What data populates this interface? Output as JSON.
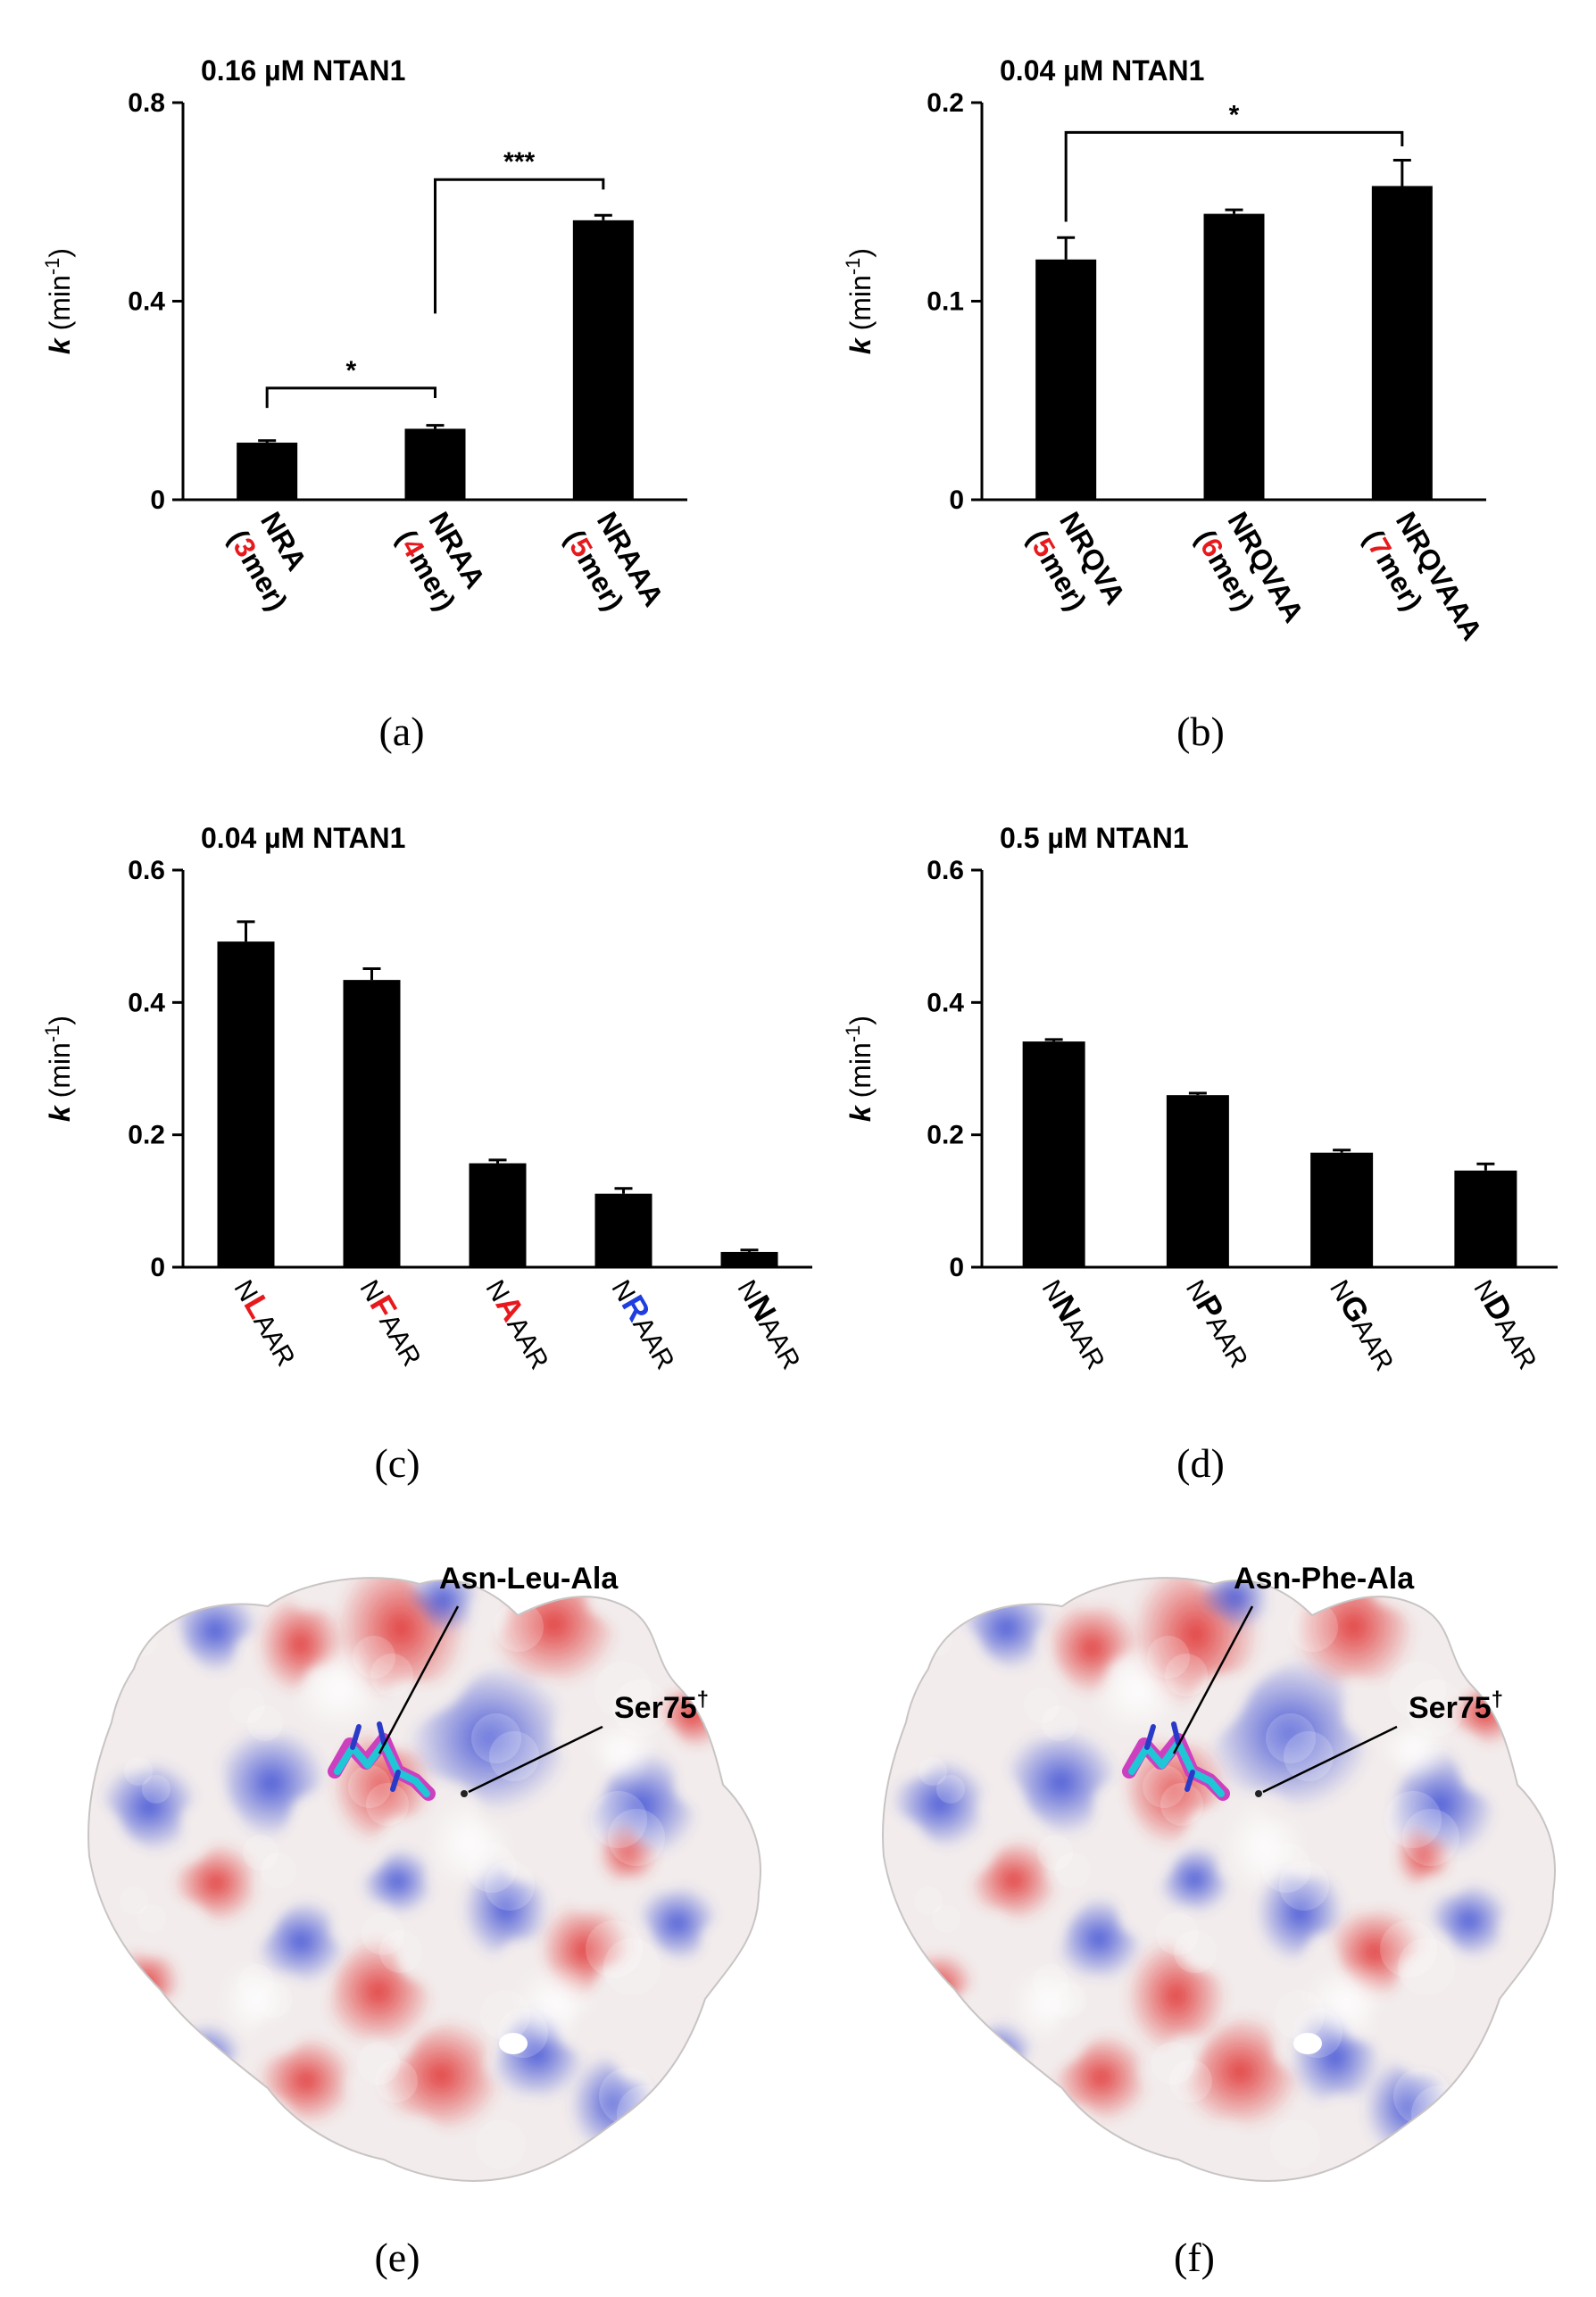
{
  "chart_data": [
    {
      "id": "a",
      "type": "bar",
      "panel_label": "(a)",
      "title": "0.16 µM NTAN1",
      "ylabel": "k (min-1)",
      "ylim": [
        0,
        0.8
      ],
      "yticks": [
        "0",
        "0.4",
        "0.8"
      ],
      "categories": [
        {
          "parts": [
            {
              "t": "NRA",
              "c": "#000000"
            },
            {
              "t": "(",
              "c": "#000000"
            },
            {
              "t": "3",
              "c": "#e8191c"
            },
            {
              "t": "mer)",
              "c": "#000000"
            }
          ],
          "line1": "NRA",
          "line2": [
            "(",
            "3",
            "mer)"
          ]
        },
        {
          "line1": "NRAA",
          "line2": [
            "(",
            "4",
            "mer)"
          ]
        },
        {
          "line1": "NRAAA",
          "line2": [
            "(",
            "5",
            "mer)"
          ]
        }
      ],
      "values": [
        0.115,
        0.143,
        0.563
      ],
      "errors": [
        0.004,
        0.007,
        0.01
      ],
      "significance": [
        {
          "from": 0,
          "to": 1,
          "label": "*"
        },
        {
          "from": 1,
          "to": 2,
          "label": "***"
        }
      ]
    },
    {
      "id": "b",
      "type": "bar",
      "panel_label": "(b)",
      "title": "0.04 µM NTAN1",
      "ylabel": "k (min-1)",
      "ylim": [
        0,
        0.2
      ],
      "yticks": [
        "0",
        "0.1",
        "0.2"
      ],
      "categories": [
        {
          "line1": "NRQVA",
          "line2": [
            "(",
            "5",
            "mer)"
          ]
        },
        {
          "line1": "NRQVAA",
          "line2": [
            "(",
            "6",
            "mer)"
          ]
        },
        {
          "line1": "NRQVAAA",
          "line2": [
            "(",
            "7",
            "mer)"
          ]
        }
      ],
      "values": [
        0.121,
        0.144,
        0.158
      ],
      "errors": [
        0.011,
        0.002,
        0.013
      ],
      "significance": [
        {
          "from": 0,
          "to": 2,
          "label": "*"
        }
      ]
    },
    {
      "id": "c",
      "type": "bar",
      "panel_label": "(c)",
      "title": "0.04 µM NTAN1",
      "ylabel": "k (min-1)",
      "ylim": [
        0,
        0.6
      ],
      "yticks": [
        "0",
        "0.2",
        "0.4",
        "0.6"
      ],
      "categories": [
        {
          "parts": [
            {
              "t": "N",
              "c": "#000000",
              "b": false
            },
            {
              "t": "L",
              "c": "#e8191c",
              "b": true
            },
            {
              "t": "AAR",
              "c": "#000000",
              "b": false
            }
          ]
        },
        {
          "parts": [
            {
              "t": "N",
              "c": "#000000",
              "b": false
            },
            {
              "t": "F",
              "c": "#e8191c",
              "b": true
            },
            {
              "t": "AAR",
              "c": "#000000",
              "b": false
            }
          ]
        },
        {
          "parts": [
            {
              "t": "N",
              "c": "#000000",
              "b": false
            },
            {
              "t": "A",
              "c": "#e8191c",
              "b": true
            },
            {
              "t": "AAR",
              "c": "#000000",
              "b": false
            }
          ]
        },
        {
          "parts": [
            {
              "t": "N",
              "c": "#000000",
              "b": false
            },
            {
              "t": "R",
              "c": "#1f3ee0",
              "b": true
            },
            {
              "t": "AAR",
              "c": "#000000",
              "b": false
            }
          ]
        },
        {
          "parts": [
            {
              "t": "N",
              "c": "#000000",
              "b": false
            },
            {
              "t": "N",
              "c": "#000000",
              "b": true
            },
            {
              "t": "AAR",
              "c": "#000000",
              "b": false
            }
          ]
        }
      ],
      "values": [
        0.492,
        0.434,
        0.157,
        0.111,
        0.023
      ],
      "errors": [
        0.03,
        0.017,
        0.005,
        0.008,
        0.003
      ]
    },
    {
      "id": "d",
      "type": "bar",
      "panel_label": "(d)",
      "title": "0.5 µM NTAN1",
      "ylabel": "k (min-1)",
      "ylim": [
        0,
        0.6
      ],
      "yticks": [
        "0",
        "0.2",
        "0.4",
        "0.6"
      ],
      "categories": [
        {
          "parts": [
            {
              "t": "N",
              "c": "#000000",
              "b": false
            },
            {
              "t": "N",
              "c": "#000000",
              "b": true
            },
            {
              "t": "AAR",
              "c": "#000000",
              "b": false
            }
          ]
        },
        {
          "parts": [
            {
              "t": "N",
              "c": "#000000",
              "b": false
            },
            {
              "t": "P",
              "c": "#000000",
              "b": true
            },
            {
              "t": "AAR",
              "c": "#000000",
              "b": false
            }
          ]
        },
        {
          "parts": [
            {
              "t": "N",
              "c": "#000000",
              "b": false
            },
            {
              "t": "G",
              "c": "#000000",
              "b": true
            },
            {
              "t": "AAR",
              "c": "#000000",
              "b": false
            }
          ]
        },
        {
          "parts": [
            {
              "t": "N",
              "c": "#000000",
              "b": false
            },
            {
              "t": "D",
              "c": "#000000",
              "b": true
            },
            {
              "t": "AAR",
              "c": "#000000",
              "b": false
            }
          ]
        }
      ],
      "values": [
        0.341,
        0.26,
        0.173,
        0.146
      ],
      "errors": [
        0.003,
        0.003,
        0.004,
        0.01
      ]
    }
  ],
  "structures": [
    {
      "id": "e",
      "panel_label": "(e)",
      "ligand_label": "Asn-Leu-Ala",
      "residue_label": "Ser75",
      "dagger": "†"
    },
    {
      "id": "f",
      "panel_label": "(f)",
      "ligand_label": "Asn-Phe-Ala",
      "residue_label": "Ser75",
      "dagger": "†"
    }
  ],
  "colors": {
    "bar": "#000000",
    "highlight_red": "#e8191c",
    "highlight_blue": "#1f3ee0",
    "surface_red": "#e0413f",
    "surface_blue": "#4a5ad8",
    "surface_white": "#f2ecec"
  }
}
